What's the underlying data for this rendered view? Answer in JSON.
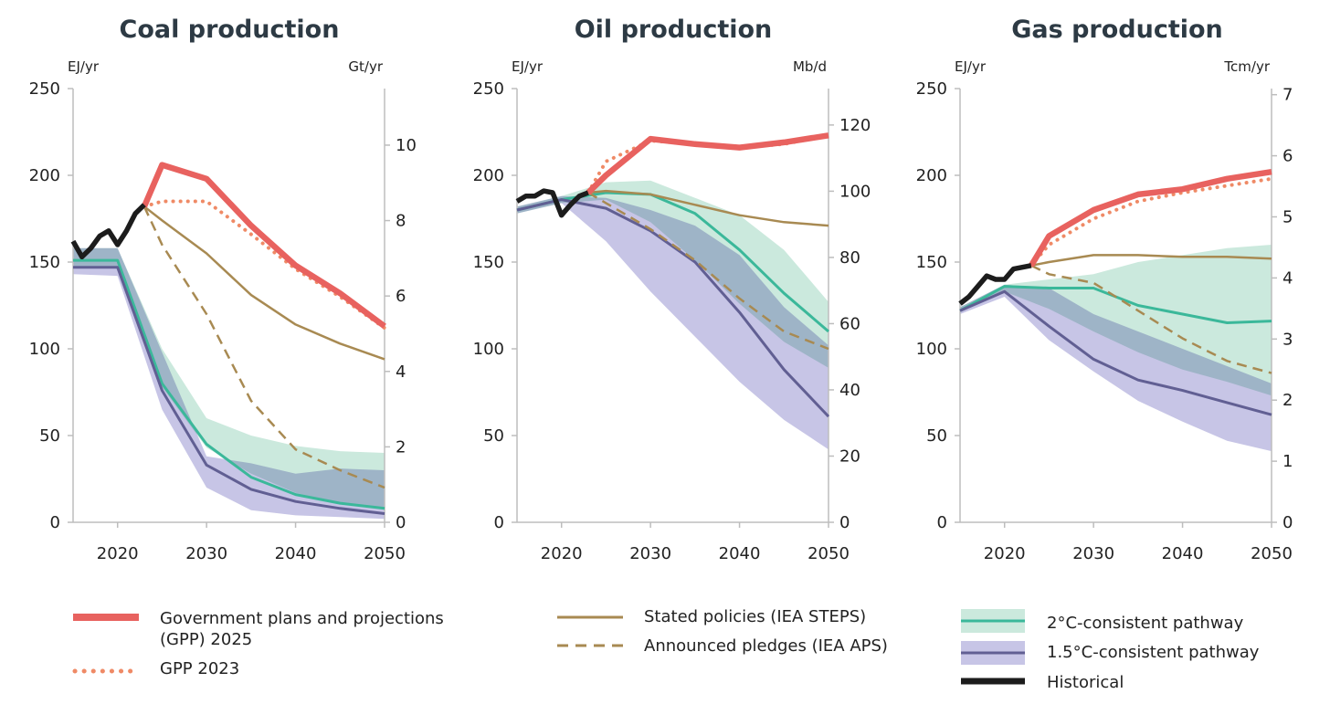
{
  "colors": {
    "gpp2025": "#e8625f",
    "gpp2023": "#ef8a66",
    "steps": "#a88a52",
    "aps": "#a88a52",
    "c2_line": "#3bb89a",
    "c2_band": "#cbe9dd",
    "c15_line": "#615f93",
    "c15_band": "#c7c5e6",
    "overlap_band": "#a7bfc6",
    "historical": "#1c1c1c",
    "axis": "#bdbdbd",
    "title": "#2d3a44"
  },
  "legend": {
    "gpp2025": [
      "Government plans and  projections",
      "(GPP) 2025"
    ],
    "gpp2023": "GPP 2023",
    "steps": "Stated policies (IEA STEPS)",
    "aps": "Announced pledges (IEA APS)",
    "c2": "2°C-consistent pathway",
    "c15": "1.5°C-consistent pathway",
    "historical": "Historical"
  },
  "chart_data": [
    {
      "type": "line",
      "title": "Coal production",
      "ylabel": "EJ/yr",
      "y2label": "Gt/yr",
      "xlim": [
        2015,
        2050
      ],
      "ylim": [
        0,
        250
      ],
      "y2lim": [
        0,
        11.5
      ],
      "xticks": [
        2020,
        2030,
        2040,
        2050
      ],
      "yticks": [
        0,
        50,
        100,
        150,
        200,
        250
      ],
      "y2ticks": [
        0,
        2,
        4,
        6,
        8,
        10
      ],
      "bands": [
        {
          "name": "2°C-consistent pathway",
          "x": [
            2015,
            2020,
            2025,
            2030,
            2035,
            2040,
            2045,
            2050
          ],
          "upper": [
            158,
            158,
            100,
            60,
            50,
            44,
            41,
            40
          ],
          "lower": [
            147,
            147,
            78,
            43,
            28,
            17,
            11,
            8
          ]
        },
        {
          "name": "1.5°C-consistent pathway",
          "x": [
            2015,
            2020,
            2025,
            2030,
            2035,
            2040,
            2045,
            2050
          ],
          "upper": [
            158,
            158,
            98,
            38,
            34,
            28,
            31,
            30
          ],
          "lower": [
            143,
            142,
            65,
            20,
            7,
            4,
            3,
            2
          ]
        }
      ],
      "series": [
        {
          "name": "2°C-consistent pathway",
          "x": [
            2015,
            2020,
            2025,
            2030,
            2035,
            2040,
            2045,
            2050
          ],
          "values": [
            151,
            151,
            80,
            45,
            26,
            16,
            11,
            8
          ]
        },
        {
          "name": "1.5°C-consistent pathway",
          "x": [
            2015,
            2020,
            2025,
            2030,
            2035,
            2040,
            2045,
            2050
          ],
          "values": [
            147,
            147,
            76,
            33,
            19,
            12,
            8,
            5
          ]
        },
        {
          "name": "Stated policies (IEA STEPS)",
          "x": [
            2023,
            2025,
            2030,
            2035,
            2040,
            2045,
            2050
          ],
          "values": [
            182,
            174,
            155,
            131,
            114,
            103,
            94
          ]
        },
        {
          "name": "Announced pledges (IEA APS)",
          "x": [
            2023,
            2025,
            2030,
            2035,
            2040,
            2045,
            2050
          ],
          "values": [
            182,
            160,
            120,
            70,
            42,
            30,
            20
          ]
        },
        {
          "name": "GPP 2023",
          "x": [
            2023,
            2025,
            2030,
            2035,
            2040,
            2045,
            2050
          ],
          "values": [
            182,
            185,
            185,
            166,
            146,
            130,
            112
          ]
        },
        {
          "name": "Government plans and projections (GPP) 2025",
          "x": [
            2023,
            2025,
            2030,
            2035,
            2040,
            2045,
            2050
          ],
          "values": [
            182,
            206,
            198,
            171,
            148,
            132,
            113
          ]
        },
        {
          "name": "Historical",
          "x": [
            2015,
            2016,
            2017,
            2018,
            2019,
            2020,
            2021,
            2022,
            2023
          ],
          "values": [
            162,
            153,
            158,
            165,
            168,
            160,
            168,
            178,
            183
          ]
        }
      ]
    },
    {
      "type": "line",
      "title": "Oil production",
      "ylabel": "EJ/yr",
      "y2label": "Mb/d",
      "xlim": [
        2015,
        2050
      ],
      "ylim": [
        0,
        250
      ],
      "y2lim": [
        0,
        131
      ],
      "xticks": [
        2020,
        2030,
        2040,
        2050
      ],
      "yticks": [
        0,
        50,
        100,
        150,
        200,
        250
      ],
      "y2ticks": [
        0,
        20,
        40,
        60,
        80,
        100,
        120
      ],
      "bands": [
        {
          "name": "2°C-consistent pathway",
          "x": [
            2015,
            2020,
            2025,
            2030,
            2035,
            2040,
            2045,
            2050
          ],
          "upper": [
            182,
            188,
            196,
            197,
            187,
            177,
            157,
            127
          ],
          "lower": [
            178,
            184,
            186,
            173,
            151,
            126,
            104,
            89
          ]
        },
        {
          "name": "1.5°C-consistent pathway",
          "x": [
            2015,
            2020,
            2025,
            2030,
            2035,
            2040,
            2045,
            2050
          ],
          "upper": [
            182,
            188,
            187,
            180,
            171,
            154,
            124,
            102
          ],
          "lower": [
            178,
            184,
            162,
            133,
            107,
            81,
            59,
            42
          ]
        }
      ],
      "series": [
        {
          "name": "2°C-consistent pathway",
          "x": [
            2015,
            2020,
            2025,
            2030,
            2035,
            2040,
            2045,
            2050
          ],
          "values": [
            180,
            186,
            190,
            189,
            178,
            157,
            132,
            110
          ]
        },
        {
          "name": "1.5°C-consistent pathway",
          "x": [
            2015,
            2020,
            2025,
            2030,
            2035,
            2040,
            2045,
            2050
          ],
          "values": [
            180,
            186,
            181,
            168,
            150,
            121,
            88,
            61
          ]
        },
        {
          "name": "Stated policies (IEA STEPS)",
          "x": [
            2023,
            2025,
            2030,
            2035,
            2040,
            2045,
            2050
          ],
          "values": [
            190,
            191,
            189,
            183,
            177,
            173,
            171
          ]
        },
        {
          "name": "Announced pledges (IEA APS)",
          "x": [
            2023,
            2025,
            2030,
            2035,
            2040,
            2045,
            2050
          ],
          "values": [
            190,
            184,
            169,
            151,
            129,
            110,
            100
          ]
        },
        {
          "name": "GPP 2023",
          "x": [
            2023,
            2025,
            2030,
            2035,
            2040,
            2045,
            2050
          ],
          "values": [
            190,
            208,
            220,
            218,
            216,
            218,
            223
          ]
        },
        {
          "name": "Government plans and projections (GPP) 2025",
          "x": [
            2023,
            2025,
            2030,
            2035,
            2040,
            2045,
            2050
          ],
          "values": [
            190,
            200,
            221,
            218,
            216,
            219,
            223
          ]
        },
        {
          "name": "Historical",
          "x": [
            2015,
            2016,
            2017,
            2018,
            2019,
            2020,
            2021,
            2022,
            2023
          ],
          "values": [
            185,
            188,
            188,
            191,
            190,
            177,
            183,
            188,
            190
          ]
        }
      ]
    },
    {
      "type": "line",
      "title": "Gas production",
      "ylabel": "EJ/yr",
      "y2label": "Tcm/yr",
      "xlim": [
        2015,
        2050
      ],
      "ylim": [
        0,
        250
      ],
      "y2lim": [
        0,
        7.1
      ],
      "xticks": [
        2020,
        2030,
        2040,
        2050
      ],
      "yticks": [
        0,
        50,
        100,
        150,
        200,
        250
      ],
      "y2ticks": [
        0,
        1,
        2,
        3,
        4,
        5,
        6,
        7
      ],
      "bands": [
        {
          "name": "2°C-consistent pathway",
          "x": [
            2015,
            2020,
            2025,
            2030,
            2035,
            2040,
            2045,
            2050
          ],
          "upper": [
            124,
            137,
            140,
            143,
            150,
            154,
            158,
            160
          ],
          "lower": [
            121,
            133,
            123,
            110,
            98,
            88,
            81,
            73
          ]
        },
        {
          "name": "1.5°C-consistent pathway",
          "x": [
            2015,
            2020,
            2025,
            2030,
            2035,
            2040,
            2045,
            2050
          ],
          "upper": [
            124,
            137,
            135,
            120,
            110,
            100,
            90,
            80
          ],
          "lower": [
            120,
            130,
            105,
            87,
            70,
            58,
            47,
            41
          ]
        }
      ],
      "series": [
        {
          "name": "2°C-consistent pathway",
          "x": [
            2015,
            2020,
            2025,
            2030,
            2035,
            2040,
            2045,
            2050
          ],
          "values": [
            122,
            136,
            135,
            135,
            125,
            120,
            115,
            116
          ]
        },
        {
          "name": "1.5°C-consistent pathway",
          "x": [
            2015,
            2020,
            2025,
            2030,
            2035,
            2040,
            2045,
            2050
          ],
          "values": [
            122,
            133,
            113,
            94,
            82,
            76,
            69,
            62
          ]
        },
        {
          "name": "Stated policies (IEA STEPS)",
          "x": [
            2023,
            2025,
            2030,
            2035,
            2040,
            2045,
            2050
          ],
          "values": [
            148,
            150,
            154,
            154,
            153,
            153,
            152
          ]
        },
        {
          "name": "Announced pledges (IEA APS)",
          "x": [
            2023,
            2025,
            2030,
            2035,
            2040,
            2045,
            2050
          ],
          "values": [
            148,
            143,
            138,
            122,
            106,
            93,
            86
          ]
        },
        {
          "name": "GPP 2023",
          "x": [
            2023,
            2025,
            2030,
            2035,
            2040,
            2045,
            2050
          ],
          "values": [
            148,
            160,
            175,
            185,
            190,
            194,
            198
          ]
        },
        {
          "name": "Government plans and projections (GPP) 2025",
          "x": [
            2023,
            2025,
            2030,
            2035,
            2040,
            2045,
            2050
          ],
          "values": [
            148,
            165,
            180,
            189,
            192,
            198,
            202
          ]
        },
        {
          "name": "Historical",
          "x": [
            2015,
            2016,
            2017,
            2018,
            2019,
            2020,
            2021,
            2022,
            2023
          ],
          "values": [
            126,
            130,
            136,
            142,
            140,
            140,
            146,
            147,
            148
          ]
        }
      ]
    }
  ]
}
